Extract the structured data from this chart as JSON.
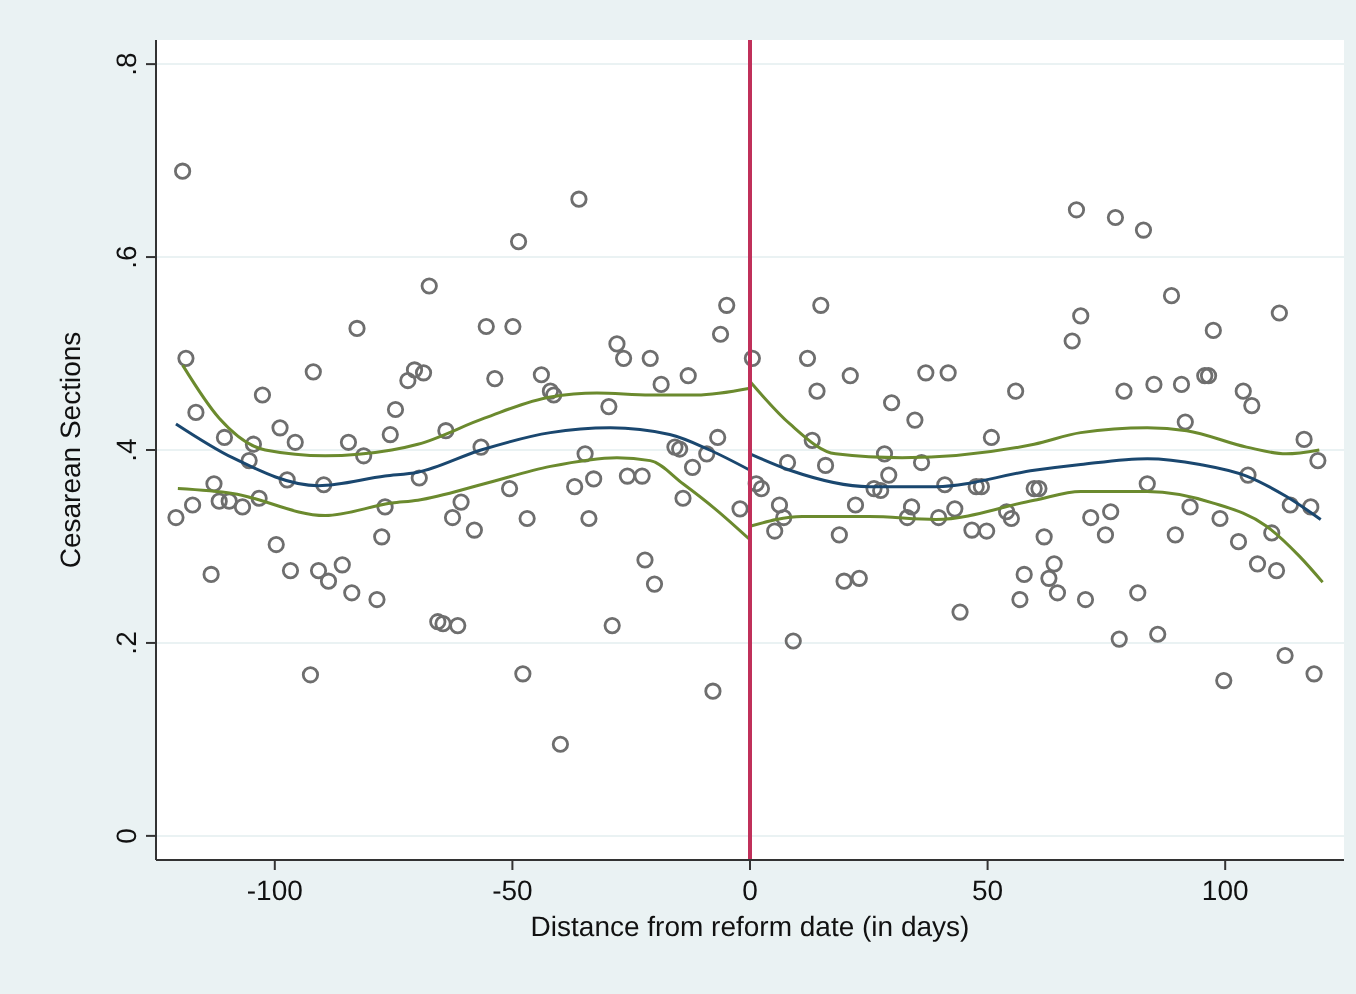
{
  "chart_data": {
    "type": "scatter",
    "xlabel": "Distance from reform date (in days)",
    "ylabel": "Cesarean Sections",
    "xlim": [
      -125,
      125
    ],
    "xticks": [
      -100,
      -50,
      0,
      50,
      100
    ],
    "ylim": [
      -0.025,
      0.825
    ],
    "yticks": [
      0,
      {
        "value": 0.2,
        "label": ".2"
      },
      {
        "value": 0.4,
        "label": ".4"
      },
      {
        "value": 0.6,
        "label": ".6"
      },
      {
        "value": 0.8,
        "label": ".8"
      }
    ],
    "grid": "y",
    "ref_lines": [
      {
        "axis": "x",
        "value": 0,
        "color": "#c0305a"
      }
    ],
    "series": [
      {
        "marker": "circle",
        "color": "#6e6e6e",
        "x": [
          -119.4,
          -118.7,
          -116.6,
          -120.8,
          -117.3,
          -113.4,
          -112.8,
          -111.7,
          -109.6,
          -110.6,
          -106.8,
          -104.5,
          -105.4,
          -103.3,
          -102.6,
          -98.9,
          -95.7,
          -97.4,
          -99.7,
          -96.7,
          -92.5,
          -91.9,
          -89.7,
          -90.8,
          -88.7,
          -85.8,
          -83.8,
          -78.5,
          -82.7,
          -84.5,
          -81.3,
          -77.5,
          -76.8,
          -75.7,
          -74.6,
          -72.0,
          -70.6,
          -68.7,
          -69.6,
          -67.5,
          -65.7,
          -64.0,
          -60.8,
          -62.6,
          -58.0,
          -64.6,
          -61.5,
          -56.6,
          -55.5,
          -49.9,
          -48.7,
          -53.7,
          -50.6,
          -46.9,
          -47.8,
          -43.9,
          -42.0,
          -41.3,
          -36.0,
          -39.9,
          -36.9,
          -34.7,
          -32.9,
          -33.9,
          -29.7,
          -29.0,
          -28.0,
          -26.6,
          -25.8,
          -22.7,
          -22.1,
          -20.1,
          -21.0,
          -18.7,
          -13.0,
          -15.8,
          -14.8,
          -12.1,
          -9.1,
          -6.8,
          -14.1,
          -7.8,
          -6.2,
          -4.9,
          -2.1,
          0.5,
          1.3,
          2.4,
          6.2,
          7.1,
          5.2,
          7.9,
          9.1,
          12.1,
          14.1,
          14.9,
          13.1,
          15.9,
          18.8,
          19.8,
          23.0,
          21.1,
          22.2,
          26.1,
          27.5,
          28.3,
          29.2,
          29.8,
          33.1,
          34.0,
          34.7,
          36.1,
          37.0,
          41.7,
          39.7,
          41.0,
          43.1,
          44.2,
          46.7,
          49.8,
          47.6,
          48.7,
          50.8,
          54.0,
          55.0,
          55.9,
          57.7,
          56.8,
          59.8,
          60.8,
          61.9,
          62.9,
          64.0,
          64.7,
          67.8,
          69.6,
          68.7,
          70.6,
          71.7,
          75.9,
          74.8,
          76.9,
          77.7,
          78.7,
          81.6,
          82.8,
          83.6,
          85.0,
          85.8,
          88.7,
          89.5,
          90.8,
          91.6,
          92.6,
          95.7,
          96.5,
          97.5,
          98.9,
          99.7,
          103.8,
          105.6,
          104.8,
          102.8,
          106.8,
          109.8,
          110.8,
          111.4,
          112.6,
          113.7,
          116.6,
          118.0,
          119.5,
          118.7
        ],
        "values": [
          0.689,
          0.495,
          0.439,
          0.33,
          0.343,
          0.271,
          0.365,
          0.347,
          0.347,
          0.413,
          0.341,
          0.406,
          0.389,
          0.35,
          0.457,
          0.423,
          0.408,
          0.369,
          0.302,
          0.275,
          0.167,
          0.481,
          0.364,
          0.275,
          0.264,
          0.281,
          0.252,
          0.245,
          0.526,
          0.408,
          0.394,
          0.31,
          0.341,
          0.416,
          0.442,
          0.472,
          0.483,
          0.48,
          0.371,
          0.57,
          0.222,
          0.42,
          0.346,
          0.33,
          0.317,
          0.22,
          0.218,
          0.403,
          0.528,
          0.528,
          0.616,
          0.474,
          0.36,
          0.329,
          0.168,
          0.478,
          0.461,
          0.457,
          0.66,
          0.095,
          0.362,
          0.396,
          0.37,
          0.329,
          0.445,
          0.218,
          0.51,
          0.495,
          0.373,
          0.373,
          0.286,
          0.261,
          0.495,
          0.468,
          0.477,
          0.403,
          0.401,
          0.382,
          0.396,
          0.413,
          0.35,
          0.15,
          0.52,
          0.55,
          0.339,
          0.495,
          0.365,
          0.36,
          0.343,
          0.33,
          0.316,
          0.387,
          0.202,
          0.495,
          0.461,
          0.55,
          0.41,
          0.384,
          0.312,
          0.264,
          0.267,
          0.477,
          0.343,
          0.36,
          0.358,
          0.396,
          0.374,
          0.449,
          0.33,
          0.341,
          0.431,
          0.387,
          0.48,
          0.48,
          0.33,
          0.364,
          0.339,
          0.232,
          0.317,
          0.316,
          0.362,
          0.362,
          0.413,
          0.336,
          0.329,
          0.461,
          0.271,
          0.245,
          0.36,
          0.36,
          0.31,
          0.267,
          0.282,
          0.252,
          0.513,
          0.539,
          0.649,
          0.245,
          0.33,
          0.336,
          0.312,
          0.641,
          0.204,
          0.461,
          0.252,
          0.628,
          0.365,
          0.468,
          0.209,
          0.56,
          0.312,
          0.468,
          0.429,
          0.341,
          0.477,
          0.477,
          0.524,
          0.329,
          0.161,
          0.461,
          0.446,
          0.374,
          0.305,
          0.282,
          0.314,
          0.275,
          0.542,
          0.187,
          0.343,
          0.411,
          0.341,
          0.389,
          0.168
        ]
      },
      {
        "type": "line",
        "marker": "none",
        "line_style": "solid",
        "color": "#1a476f",
        "x": [
          -120.8,
          -108.9,
          -90.8,
          -76.8,
          -69.9,
          -56.6,
          -42,
          -29.4,
          -16.9,
          -8.5,
          0
        ],
        "values": [
          0.427,
          0.392,
          0.363,
          0.373,
          0.377,
          0.4,
          0.418,
          0.423,
          0.416,
          0.4,
          0.379
        ]
      },
      {
        "type": "line",
        "marker": "none",
        "line_style": "solid",
        "color": "#6b8a2e",
        "x": [
          -119.4,
          -111.7,
          -102,
          -89.4,
          -75.4,
          -69.9,
          -55.9,
          -42,
          -32.2,
          -21,
          -11.3,
          0
        ],
        "values": [
          0.488,
          0.433,
          0.4,
          0.394,
          0.4,
          0.406,
          0.433,
          0.455,
          0.459,
          0.457,
          0.457,
          0.464
        ]
      },
      {
        "type": "line",
        "marker": "none",
        "line_style": "solid",
        "color": "#6b8a2e",
        "x": [
          -120.4,
          -108.9,
          -89.4,
          -75.4,
          -69.9,
          -55.9,
          -42,
          -28,
          -21,
          -14.1,
          -7.1,
          0
        ],
        "values": [
          0.36,
          0.355,
          0.332,
          0.345,
          0.348,
          0.365,
          0.383,
          0.392,
          0.389,
          0.365,
          0.338,
          0.307
        ]
      },
      {
        "type": "line",
        "marker": "none",
        "line_style": "solid",
        "color": "#1a476f",
        "x": [
          0,
          8.4,
          25.1,
          39.1,
          59.8,
          69.6,
          83.6,
          94.7,
          104.5,
          112.8,
          120.1
        ],
        "values": [
          0.396,
          0.379,
          0.362,
          0.362,
          0.379,
          0.385,
          0.391,
          0.385,
          0.373,
          0.352,
          0.328
        ]
      },
      {
        "type": "line",
        "marker": "none",
        "line_style": "solid",
        "color": "#6b8a2e",
        "x": [
          0,
          8.4,
          18,
          32,
          59.8,
          69.6,
          83.6,
          91.9,
          104.5,
          112.8,
          119.8
        ],
        "values": [
          0.471,
          0.427,
          0.396,
          0.392,
          0.406,
          0.418,
          0.423,
          0.42,
          0.403,
          0.396,
          0.4
        ]
      },
      {
        "type": "line",
        "marker": "none",
        "line_style": "solid",
        "color": "#6b8a2e",
        "x": [
          0,
          11,
          25.1,
          39.1,
          59.8,
          69.6,
          83.6,
          97.5,
          108.7,
          115.6,
          120.5
        ],
        "values": [
          0.321,
          0.331,
          0.331,
          0.328,
          0.348,
          0.357,
          0.357,
          0.345,
          0.321,
          0.29,
          0.263
        ]
      }
    ]
  }
}
